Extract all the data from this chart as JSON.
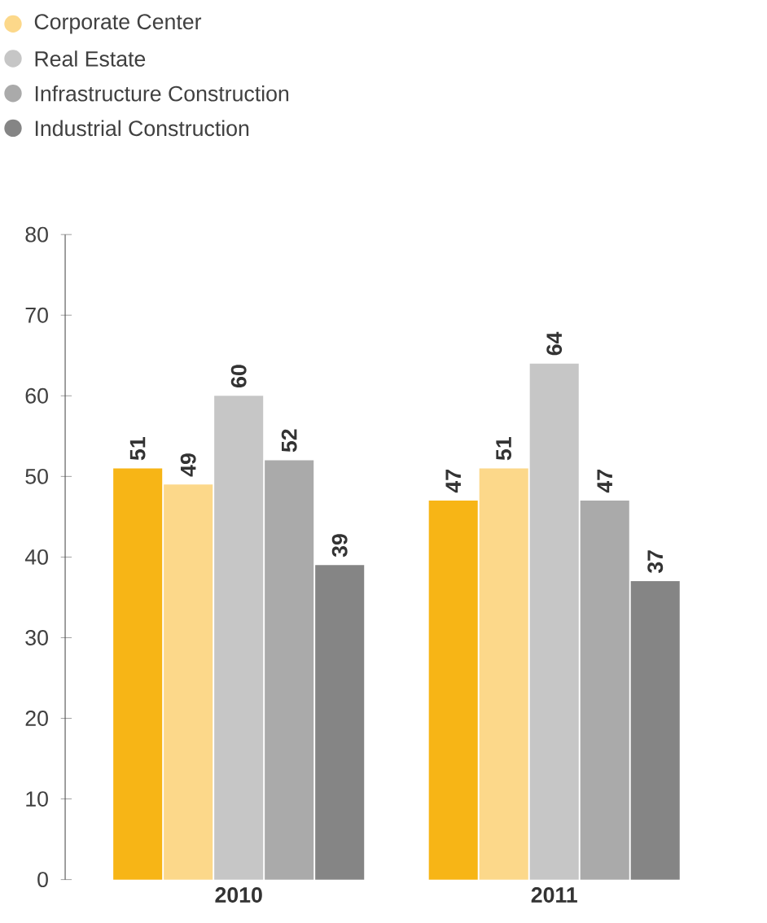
{
  "chart_data": {
    "type": "bar",
    "categories": [
      "2010",
      "2011"
    ],
    "series": [
      {
        "color": "#f7b516",
        "values": [
          51,
          47
        ]
      },
      {
        "name": "Corporate Center",
        "color": "#fcd88a",
        "values": [
          49,
          51
        ]
      },
      {
        "name": "Real Estate",
        "color": "#c6c6c6",
        "values": [
          60,
          64
        ]
      },
      {
        "name": "Infrastructure Construction",
        "color": "#aaaaaa",
        "values": [
          52,
          47
        ]
      },
      {
        "name": "Industrial Construction",
        "color": "#858585",
        "values": [
          39,
          37
        ]
      }
    ],
    "ylim": [
      0,
      80
    ],
    "yticks": [
      0,
      10,
      20,
      30,
      40,
      50,
      60,
      70,
      80
    ],
    "data_labels": true,
    "legend": "top left",
    "grid": false
  }
}
